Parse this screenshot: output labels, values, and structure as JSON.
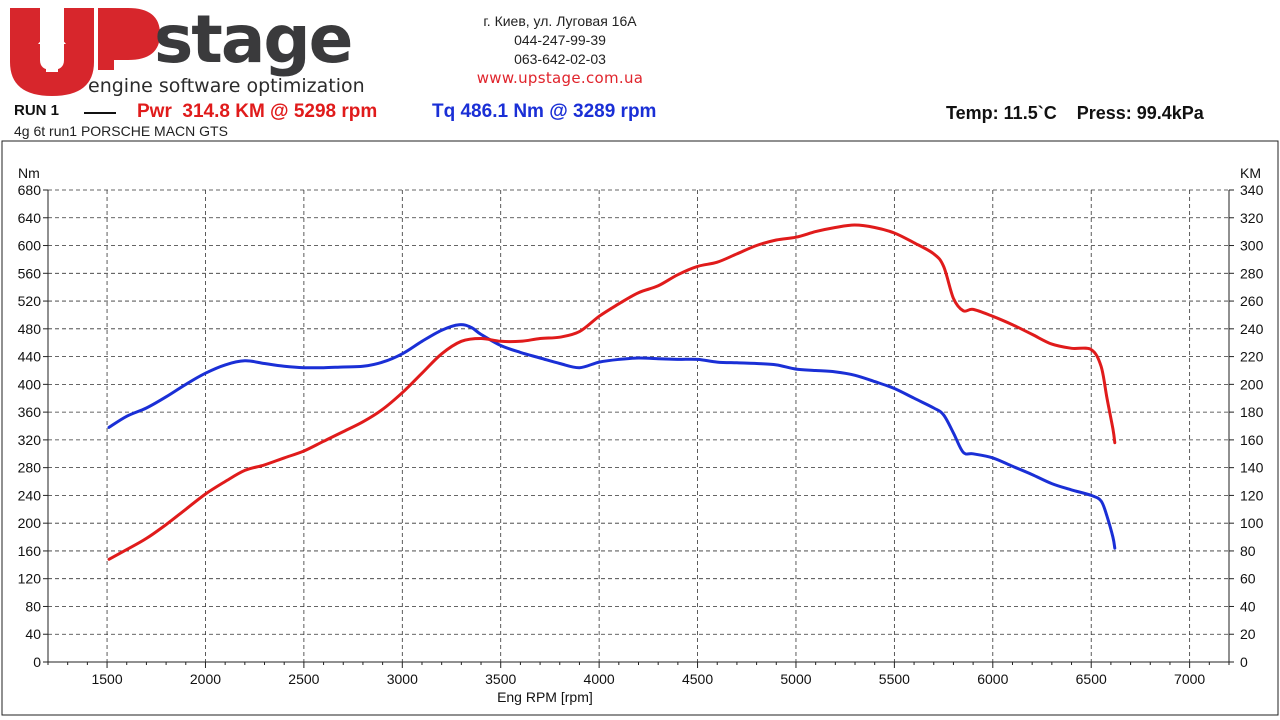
{
  "header": {
    "logo_text": "Upstage",
    "logo_tagline": "engine software optimization",
    "address": "г. Киев, ул. Луговая 16А",
    "phone1": "044-247-99-39",
    "phone2": "063-642-02-03",
    "website": "www.upstage.com.ua"
  },
  "run": {
    "label": "RUN 1",
    "power_text": "Pwr  314.8 KM @ 5298 rpm",
    "torque_text": "Tq 486.1 Nm @ 3289 rpm",
    "env_text": "Temp: 11.5`C    Press: 99.4kPa",
    "description": "4g 6t run1 PORSCHE MACN GTS"
  },
  "colors": {
    "power": "#e01b1b",
    "torque": "#1a2fd6",
    "brand": "#e0242c"
  },
  "chart_data": {
    "type": "line",
    "title": "",
    "xlabel": "Eng RPM [rpm]",
    "ylabel": "Nm",
    "y2label": "KM",
    "xlim": [
      1200,
      7200
    ],
    "ylim": [
      0,
      680
    ],
    "y2lim": [
      0,
      340
    ],
    "x_ticks": [
      1500,
      2000,
      2500,
      3000,
      3500,
      4000,
      4500,
      5000,
      5500,
      6000,
      6500,
      7000
    ],
    "y_ticks": [
      0,
      40,
      80,
      120,
      160,
      200,
      240,
      280,
      320,
      360,
      400,
      440,
      480,
      520,
      560,
      600,
      640,
      680
    ],
    "y2_ticks": [
      0,
      20,
      40,
      60,
      80,
      100,
      120,
      140,
      160,
      180,
      200,
      220,
      240,
      260,
      280,
      300,
      320,
      340
    ],
    "grid": true,
    "series": [
      {
        "name": "Tq",
        "axis": "left",
        "color": "#1a2fd6",
        "x": [
          1510,
          1600,
          1700,
          1800,
          1900,
          2000,
          2100,
          2200,
          2300,
          2400,
          2500,
          2600,
          2700,
          2800,
          2900,
          3000,
          3100,
          3200,
          3289,
          3350,
          3400,
          3500,
          3600,
          3700,
          3800,
          3900,
          4000,
          4100,
          4200,
          4300,
          4400,
          4500,
          4600,
          4700,
          4800,
          4900,
          5000,
          5100,
          5200,
          5300,
          5400,
          5500,
          5600,
          5700,
          5750,
          5800,
          5850,
          5900,
          6000,
          6100,
          6200,
          6300,
          6400,
          6500,
          6550,
          6580,
          6610,
          6620
        ],
        "y": [
          338,
          354,
          366,
          382,
          400,
          416,
          428,
          434,
          430,
          426,
          424,
          424,
          425,
          426,
          432,
          444,
          462,
          478,
          486,
          482,
          472,
          456,
          446,
          438,
          430,
          424,
          432,
          436,
          438,
          437,
          436,
          436,
          432,
          431,
          430,
          428,
          422,
          420,
          418,
          413,
          404,
          394,
          380,
          366,
          356,
          330,
          302,
          300,
          294,
          282,
          270,
          257,
          248,
          240,
          232,
          210,
          180,
          164
        ]
      },
      {
        "name": "Pwr",
        "axis": "right",
        "color": "#e01b1b",
        "x": [
          1510,
          1600,
          1700,
          1800,
          1900,
          2000,
          2100,
          2200,
          2300,
          2400,
          2500,
          2600,
          2700,
          2800,
          2900,
          3000,
          3100,
          3200,
          3300,
          3400,
          3500,
          3600,
          3700,
          3800,
          3900,
          4000,
          4100,
          4200,
          4300,
          4400,
          4500,
          4600,
          4700,
          4800,
          4900,
          5000,
          5100,
          5200,
          5298,
          5400,
          5500,
          5600,
          5700,
          5750,
          5800,
          5850,
          5900,
          6000,
          6100,
          6200,
          6300,
          6400,
          6500,
          6550,
          6580,
          6610,
          6620
        ],
        "y": [
          74,
          81,
          89,
          99,
          110,
          121,
          130,
          138,
          142,
          147,
          152,
          159,
          166,
          173,
          182,
          194,
          208,
          222,
          231,
          233,
          231,
          231,
          233,
          234,
          238,
          249,
          258,
          266,
          271,
          279,
          285,
          288,
          294,
          300,
          304,
          306,
          310,
          313,
          314.8,
          313,
          309,
          302,
          294,
          285,
          262,
          253,
          254,
          249,
          243,
          236,
          229,
          226,
          225,
          213,
          190,
          168,
          158
        ]
      }
    ]
  }
}
